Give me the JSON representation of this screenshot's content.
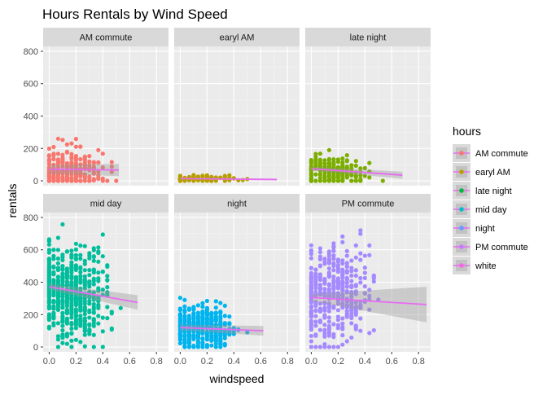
{
  "chart_data": {
    "type": "scatter",
    "title": "Hours Rentals by Wind Speed",
    "xlabel": "windspeed",
    "ylabel": "rentals",
    "legend_title": "hours",
    "legend_position": "right",
    "grid": true,
    "ylim": [
      -30,
      830
    ],
    "y_ticks": [
      0,
      200,
      400,
      600,
      800
    ],
    "smooth_color": "#E76BF3",
    "band_color": "#999999",
    "panel_bg": "#EBEBEB",
    "strip_bg": "#D9D9D9",
    "legend": [
      {
        "label": "AM commute",
        "color": "#F8766D"
      },
      {
        "label": "earyl AM",
        "color": "#B79F00"
      },
      {
        "label": "late night",
        "color": "#00BA38"
      },
      {
        "label": "mid day",
        "color": "#00BFC4"
      },
      {
        "label": "night",
        "color": "#619CFF"
      },
      {
        "label": "PM commute",
        "color": "#C77CFF"
      },
      {
        "label": "white",
        "color": "#F564E3"
      }
    ],
    "columns": [
      {
        "xlim": [
          -0.045,
          0.89
        ],
        "x_ticks": [
          "0.0",
          "0.2",
          "0.4",
          "0.6",
          "0.8"
        ],
        "x_values": [
          0,
          0.2,
          0.4,
          0.6,
          0.8
        ]
      },
      {
        "xlim": [
          -0.045,
          0.89
        ],
        "x_ticks": [
          "0.0",
          "0.2",
          "0.4",
          "0.6",
          "0.8"
        ],
        "x_values": [
          0,
          0.2,
          0.4,
          0.6,
          0.8
        ]
      },
      {
        "xlim": [
          -0.045,
          0.89
        ],
        "x_ticks": [
          "0.0",
          "0.2",
          "0.4",
          "0.6",
          "0.8"
        ],
        "x_values": [
          0,
          0.2,
          0.4,
          0.6,
          0.8
        ]
      }
    ],
    "panels": [
      {
        "label": "AM commute",
        "color": "#F8766D",
        "seed": 11,
        "y_mean": 70,
        "y_sd": 65,
        "y_min": 0,
        "y_max": 320,
        "x_max": 0.55,
        "n": 260,
        "fit": {
          "x": [
            0,
            0.52
          ],
          "y": [
            72,
            67
          ]
        },
        "band": [
          28,
          38
        ]
      },
      {
        "label": "earyl AM",
        "color": "#B79F00",
        "seed": 23,
        "y_mean": 12,
        "y_sd": 9,
        "y_min": 0,
        "y_max": 45,
        "x_max": 0.72,
        "n": 130,
        "fit": {
          "x": [
            0,
            0.72
          ],
          "y": [
            14,
            8
          ]
        },
        "band": [
          3,
          6
        ]
      },
      {
        "label": "late night",
        "color": "#7CAE00",
        "seed": 37,
        "y_mean": 55,
        "y_sd": 45,
        "y_min": 0,
        "y_max": 190,
        "x_max": 0.7,
        "n": 220,
        "fit": {
          "x": [
            0,
            0.68
          ],
          "y": [
            75,
            35
          ]
        },
        "band": [
          12,
          22
        ]
      },
      {
        "label": "mid day",
        "color": "#00BE9C",
        "seed": 41,
        "y_mean": 330,
        "y_sd": 150,
        "y_min": 0,
        "y_max": 770,
        "x_max": 0.68,
        "n": 560,
        "fit": {
          "x": [
            0,
            0.66
          ],
          "y": [
            372,
            275
          ]
        },
        "band": [
          18,
          45
        ]
      },
      {
        "label": "night",
        "color": "#00B4EF",
        "seed": 53,
        "y_mean": 120,
        "y_sd": 70,
        "y_min": 0,
        "y_max": 390,
        "x_max": 0.62,
        "n": 380,
        "fit": {
          "x": [
            0,
            0.62
          ],
          "y": [
            120,
            100
          ]
        },
        "band": [
          18,
          30
        ]
      },
      {
        "label": "PM commute",
        "color": "#A58AFF",
        "seed": 67,
        "y_mean": 320,
        "y_sd": 140,
        "y_min": 0,
        "y_max": 720,
        "x_max": 0.87,
        "n": 420,
        "fit": {
          "x": [
            0,
            0.86
          ],
          "y": [
            305,
            262
          ]
        },
        "band": [
          22,
          110
        ]
      }
    ]
  }
}
